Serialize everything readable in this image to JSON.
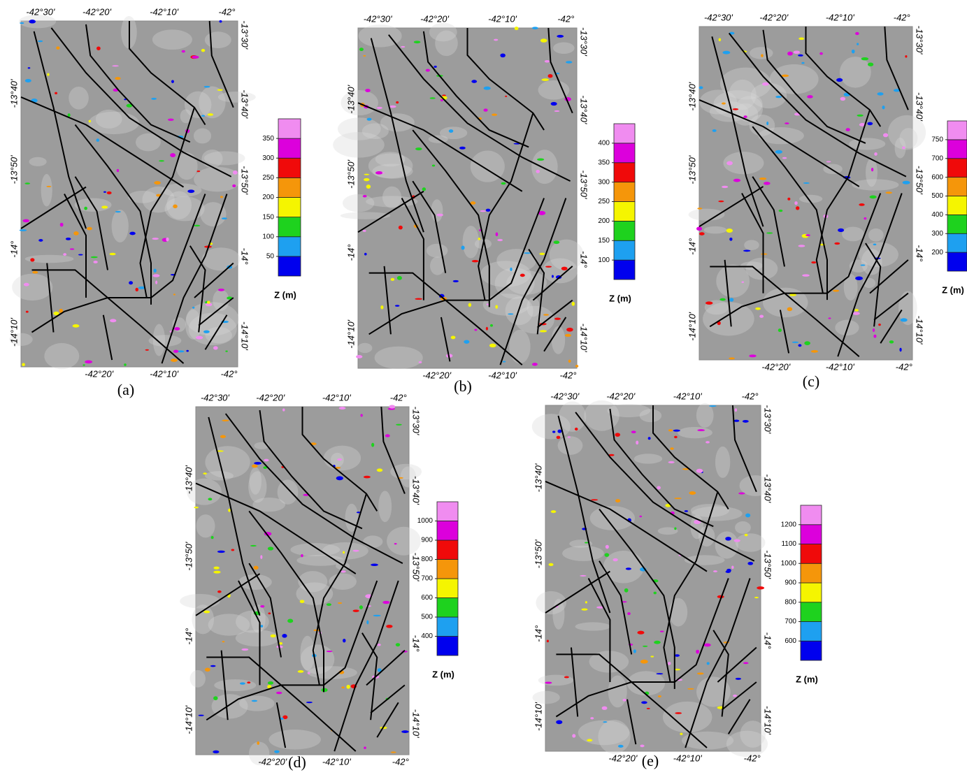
{
  "colorbar_colors": [
    "#0000ee",
    "#1ea0f0",
    "#1ed21e",
    "#f5f500",
    "#f5960a",
    "#f00a0a",
    "#dc00dc",
    "#f08cf0"
  ],
  "panels": [
    {
      "label": "(a)",
      "lon_top": [
        "-42°30'",
        "-42°20'",
        "-42°10'",
        "-42°"
      ],
      "lon_bottom": [
        "-42°20'",
        "-42°10'",
        "-42°"
      ],
      "lat_left": [
        "-13°40'",
        "-13°50'",
        "-14°",
        "-14°10'"
      ],
      "lat_right": [
        "-13°30'",
        "-13°40'",
        "-13°50'",
        "-14°",
        "-14°10'"
      ],
      "colorbar": {
        "title": "Z (m)",
        "ticks": [
          50,
          100,
          150,
          200,
          250,
          300,
          350
        ]
      }
    },
    {
      "label": "(b)",
      "lon_top": [
        "-42°30'",
        "-42°20'",
        "-42°10'",
        "-42°"
      ],
      "lon_bottom": [
        "-42°20'",
        "-42°10'",
        "-42°"
      ],
      "lat_left": [
        "-13°40'",
        "-13°50'",
        "-14°",
        "-14°10'"
      ],
      "lat_right": [
        "-13°30'",
        "-13°40'",
        "-13°50'",
        "-14°",
        "-14°10'"
      ],
      "colorbar": {
        "title": "Z (m)",
        "ticks": [
          100,
          150,
          200,
          250,
          300,
          350,
          400
        ]
      }
    },
    {
      "label": "(c)",
      "lon_top": [
        "-42°30'",
        "-42°20'",
        "-42°10'",
        "-42°"
      ],
      "lon_bottom": [
        "-42°20'",
        "-42°10'",
        "-42°"
      ],
      "lat_left": [
        "-13°40'",
        "-13°50'",
        "-14°",
        "-14°10'"
      ],
      "lat_right": [
        "-13°30'",
        "-13°40'",
        "-13°50'",
        "-14°",
        "-14°10'"
      ],
      "colorbar": {
        "title": "Z (m)",
        "ticks": [
          200,
          300,
          400,
          500,
          600,
          700,
          750
        ]
      }
    },
    {
      "label": "(d)",
      "lon_top": [
        "-42°30'",
        "-42°20'",
        "-42°10'",
        "-42°"
      ],
      "lon_bottom": [
        "-42°20'",
        "-42°10'",
        "-42°"
      ],
      "lat_left": [
        "-13°40'",
        "-13°50'",
        "-14°",
        "-14°10'"
      ],
      "lat_right": [
        "-13°30'",
        "-13°40'",
        "-13°50'",
        "-14°",
        "-14°10'"
      ],
      "colorbar": {
        "title": "Z (m)",
        "ticks": [
          400,
          500,
          600,
          700,
          800,
          900,
          1000
        ]
      }
    },
    {
      "label": "(e)",
      "lon_top": [
        "-42°30'",
        "-42°20'",
        "-42°10'",
        "-42°"
      ],
      "lon_bottom": [
        "-42°20'",
        "-42°10'",
        "-42°"
      ],
      "lat_left": [
        "-13°40'",
        "-13°50'",
        "-14°",
        "-14°10'"
      ],
      "lat_right": [
        "-13°30'",
        "-13°40'",
        "-13°50'",
        "-14°",
        "-14°10'"
      ],
      "colorbar": {
        "title": "Z (m)",
        "ticks": [
          600,
          700,
          800,
          900,
          1000,
          1100,
          1200
        ]
      }
    }
  ]
}
